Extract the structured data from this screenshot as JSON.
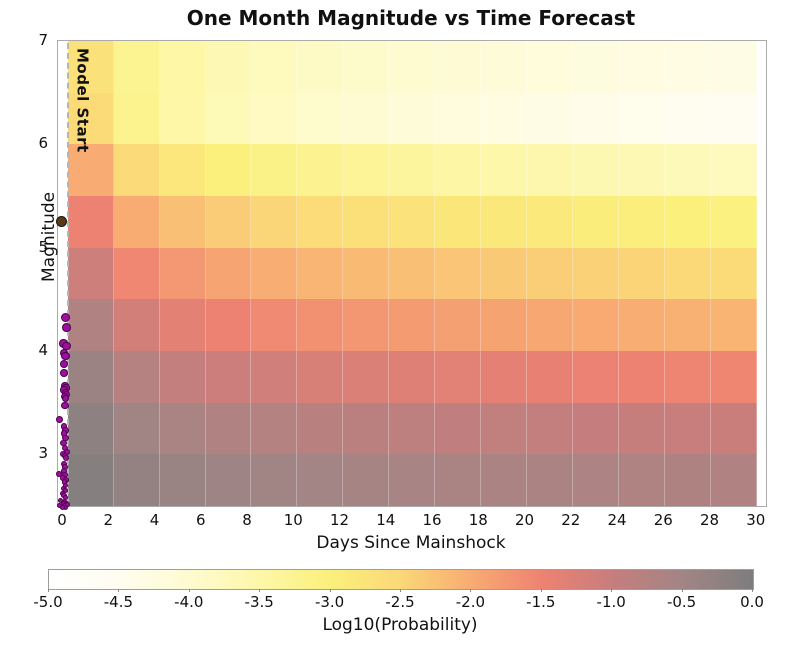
{
  "chart_data": {
    "type": "heatmap",
    "title": "One Month Magnitude vs Time Forecast",
    "xlabel": "Days Since Mainshock",
    "ylabel": "Magnitude",
    "colorbar_label": "Log10(Probability)",
    "model_start_label": "Model Start",
    "xlim": [
      -0.22,
      30.4
    ],
    "ylim": [
      2.5,
      7.0
    ],
    "x_ticks": [
      0,
      2,
      4,
      6,
      8,
      10,
      12,
      14,
      16,
      18,
      20,
      22,
      24,
      26,
      28,
      30
    ],
    "y_ticks": [
      3,
      4,
      5,
      6,
      7
    ],
    "grid": "off",
    "legend": "none",
    "time_bins": {
      "start_day": 0.2,
      "end_day": 30.0,
      "count": 15
    },
    "mag_bins": {
      "start": 2.5,
      "end": 7.0,
      "count": 9
    },
    "model_start_day": 0.2,
    "rows_mag_top_to_bottom": [
      "6.5-7.0",
      "6.0-6.5",
      "5.5-6.0",
      "5.0-5.5",
      "4.5-5.0",
      "4.0-4.5",
      "3.5-4.0",
      "3.0-3.5",
      "2.5-3.0"
    ],
    "log10_probability_grid": [
      [
        -2.7,
        -3.24,
        -3.48,
        -3.64,
        -3.76,
        -3.86,
        -3.94,
        -4.0,
        -4.07,
        -4.12,
        -4.17,
        -4.22,
        -4.26,
        -4.3,
        -4.35
      ],
      [
        -2.55,
        -3.21,
        -3.49,
        -3.69,
        -3.83,
        -3.95,
        -4.05,
        -4.13,
        -4.21,
        -4.27,
        -4.33,
        -4.39,
        -4.44,
        -4.49,
        -4.55
      ],
      [
        -2.0,
        -2.58,
        -2.82,
        -3.0,
        -3.12,
        -3.23,
        -3.31,
        -3.38,
        -3.45,
        -3.51,
        -3.56,
        -3.61,
        -3.65,
        -3.7,
        -3.75
      ],
      [
        -1.5,
        -2.01,
        -2.23,
        -2.38,
        -2.49,
        -2.59,
        -2.66,
        -2.72,
        -2.79,
        -2.83,
        -2.88,
        -2.93,
        -2.96,
        -3.0,
        -3.05
      ],
      [
        -1.07,
        -1.56,
        -1.77,
        -1.91,
        -2.02,
        -2.11,
        -2.18,
        -2.24,
        -2.3,
        -2.34,
        -2.39,
        -2.43,
        -2.47,
        -2.51,
        -2.55
      ],
      [
        -0.7,
        -1.16,
        -1.36,
        -1.5,
        -1.6,
        -1.68,
        -1.75,
        -1.81,
        -1.86,
        -1.9,
        -1.95,
        -1.99,
        -2.02,
        -2.06,
        -2.1
      ],
      [
        -0.4,
        -0.78,
        -0.94,
        -1.06,
        -1.14,
        -1.21,
        -1.26,
        -1.31,
        -1.35,
        -1.39,
        -1.42,
        -1.46,
        -1.49,
        -1.52,
        -1.55
      ],
      [
        -0.22,
        -0.49,
        -0.61,
        -0.69,
        -0.75,
        -0.8,
        -0.84,
        -0.88,
        -0.91,
        -0.93,
        -0.96,
        -0.98,
        -1.0,
        -1.03,
        -1.05
      ],
      [
        -0.12,
        -0.31,
        -0.39,
        -0.45,
        -0.49,
        -0.53,
        -0.56,
        -0.58,
        -0.6,
        -0.62,
        -0.64,
        -0.65,
        -0.67,
        -0.68,
        -0.7
      ]
    ],
    "colormap": [
      {
        "v": -5.0,
        "c": "#ffffff"
      },
      {
        "v": -4.5,
        "c": "#fffdf0"
      },
      {
        "v": -4.0,
        "c": "#fefbd0"
      },
      {
        "v": -3.5,
        "c": "#fdf7a8"
      },
      {
        "v": -3.0,
        "c": "#fbf07c"
      },
      {
        "v": -2.5,
        "c": "#fbd778"
      },
      {
        "v": -2.0,
        "c": "#f8ab72"
      },
      {
        "v": -1.5,
        "c": "#ee8272"
      },
      {
        "v": -1.0,
        "c": "#c67e7d"
      },
      {
        "v": -0.5,
        "c": "#a28585"
      },
      {
        "v": 0.0,
        "c": "#7d7d7e"
      }
    ],
    "colorbar_tick_labels": [
      "-5.0",
      "-4.5",
      "-4.0",
      "-3.5",
      "-3.0",
      "-2.5",
      "-2.0",
      "-1.5",
      "-1.0",
      "-0.5",
      "0.0"
    ],
    "mainshock": {
      "day": -0.12,
      "mag": 5.26,
      "color": "#5b3917"
    },
    "event_color": "#9b119b",
    "event_edge_color": "#4b004b",
    "events": [
      [
        0.05,
        4.33
      ],
      [
        0.1,
        4.24
      ],
      [
        -0.03,
        4.08
      ],
      [
        0.1,
        4.06
      ],
      [
        0.0,
        3.99
      ],
      [
        0.06,
        3.96
      ],
      [
        -0.02,
        3.88
      ],
      [
        0.01,
        3.8
      ],
      [
        0.03,
        3.67
      ],
      [
        0.09,
        3.65
      ],
      [
        0.0,
        3.63
      ],
      [
        0.05,
        3.61
      ],
      [
        0.1,
        3.59
      ],
      [
        0.02,
        3.57
      ],
      [
        0.06,
        3.55
      ],
      [
        0.04,
        3.48
      ],
      [
        -0.2,
        3.35
      ],
      [
        0.0,
        3.28
      ],
      [
        0.05,
        3.24
      ],
      [
        0.0,
        3.21
      ],
      [
        0.06,
        3.17
      ],
      [
        -0.02,
        3.12
      ],
      [
        0.03,
        3.07
      ],
      [
        0.11,
        3.03
      ],
      [
        -0.05,
        3.01
      ],
      [
        0.02,
        2.99
      ],
      [
        0.08,
        2.97
      ],
      [
        -0.02,
        2.92
      ],
      [
        0.03,
        2.89
      ],
      [
        -0.22,
        2.82
      ],
      [
        0.0,
        2.85
      ],
      [
        0.05,
        2.81
      ],
      [
        -0.05,
        2.78
      ],
      [
        0.08,
        2.76
      ],
      [
        0.01,
        2.74
      ],
      [
        0.05,
        2.71
      ],
      [
        -0.03,
        2.68
      ],
      [
        0.07,
        2.66
      ],
      [
        -0.08,
        2.63
      ],
      [
        0.0,
        2.61
      ],
      [
        0.05,
        2.59
      ],
      [
        -0.14,
        2.56
      ],
      [
        0.02,
        2.55
      ],
      [
        -0.04,
        2.53
      ],
      [
        0.09,
        2.53
      ],
      [
        -0.18,
        2.51
      ],
      [
        0.0,
        2.51
      ],
      [
        0.06,
        2.5
      ],
      [
        -0.07,
        2.5
      ],
      [
        0.13,
        2.52
      ]
    ]
  }
}
